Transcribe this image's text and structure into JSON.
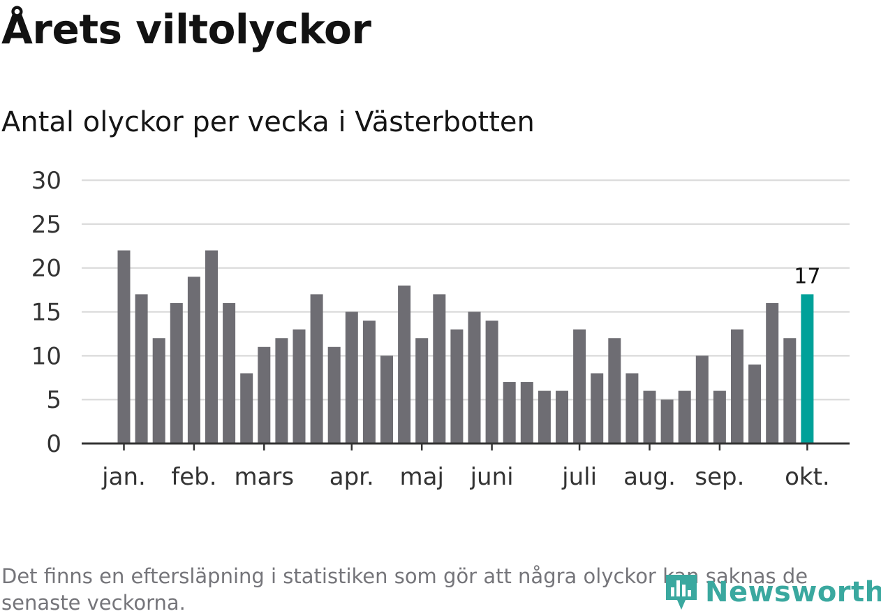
{
  "title": "Årets viltolyckor",
  "subtitle": "Antal olyckor per vecka i Västerbotten",
  "footnote": "Det finns en eftersläpning i statistiken som gör att några olyckor kan saknas de senaste veckorna.",
  "brand": {
    "name": "Newsworthy",
    "icon": "newsworthy-logo-icon",
    "color": "#3aa89f"
  },
  "colors": {
    "bar": "#6e6d73",
    "highlight": "#00a199",
    "grid": "#dddddd",
    "axis": "#333333",
    "text": "#333333"
  },
  "chart_data": {
    "type": "bar",
    "title": "Årets viltolyckor",
    "subtitle": "Antal olyckor per vecka i Västerbotten",
    "xlabel": "",
    "ylabel": "",
    "ylim": [
      0,
      30
    ],
    "yticks": [
      0,
      5,
      10,
      15,
      20,
      25,
      30
    ],
    "grid": true,
    "weeks": [
      1,
      2,
      3,
      4,
      5,
      6,
      7,
      8,
      9,
      10,
      11,
      12,
      13,
      14,
      15,
      16,
      17,
      18,
      19,
      20,
      21,
      22,
      23,
      24,
      25,
      26,
      27,
      28,
      29,
      30,
      31,
      32,
      33,
      34,
      35,
      36,
      37,
      38,
      39,
      40
    ],
    "values": [
      22,
      17,
      12,
      16,
      19,
      22,
      16,
      8,
      11,
      12,
      13,
      17,
      11,
      15,
      14,
      10,
      18,
      12,
      17,
      13,
      15,
      14,
      7,
      7,
      6,
      6,
      13,
      8,
      12,
      8,
      6,
      5,
      6,
      10,
      6,
      13,
      9,
      16,
      12,
      17
    ],
    "highlight_index": 39,
    "highlight_label": "17",
    "month_ticks": [
      {
        "label": "jan.",
        "week_index": 0
      },
      {
        "label": "feb.",
        "week_index": 4
      },
      {
        "label": "mars",
        "week_index": 8
      },
      {
        "label": "apr.",
        "week_index": 13
      },
      {
        "label": "maj",
        "week_index": 17
      },
      {
        "label": "juni",
        "week_index": 21
      },
      {
        "label": "juli",
        "week_index": 26
      },
      {
        "label": "aug.",
        "week_index": 30
      },
      {
        "label": "sep.",
        "week_index": 34
      },
      {
        "label": "okt.",
        "week_index": 39
      }
    ]
  }
}
